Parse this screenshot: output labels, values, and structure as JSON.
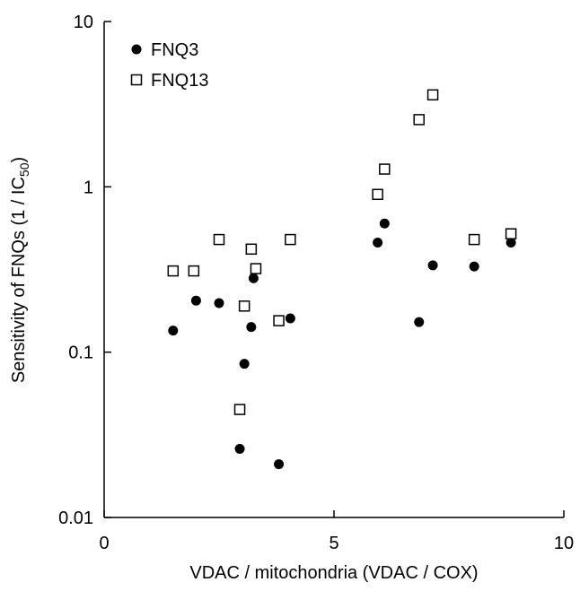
{
  "chart_data": {
    "type": "scatter",
    "xlabel": "VDAC / mitochondria (VDAC / COX)",
    "ylabel": "Sensitivity of FNQs (1 / IC",
    "ylabel_sub": "50",
    "ylabel_close": ")",
    "xlim": [
      0,
      10
    ],
    "ylim": [
      0.01,
      10
    ],
    "yscale": "log",
    "x_ticks": [
      0,
      5,
      10
    ],
    "x_tick_labels": [
      "0",
      "5",
      "10"
    ],
    "y_ticks": [
      0.01,
      0.1,
      1,
      10
    ],
    "y_tick_labels": [
      "0.01",
      "0.1",
      "1",
      "10"
    ],
    "grid": false,
    "legend_position": "top-left",
    "series": [
      {
        "name": "FNQ3",
        "marker": "filled-circle",
        "color": "#000000",
        "points": [
          {
            "x": 1.5,
            "y": 0.135
          },
          {
            "x": 2.0,
            "y": 0.205
          },
          {
            "x": 2.5,
            "y": 0.198
          },
          {
            "x": 2.95,
            "y": 0.026
          },
          {
            "x": 3.05,
            "y": 0.085
          },
          {
            "x": 3.2,
            "y": 0.142
          },
          {
            "x": 3.25,
            "y": 0.28
          },
          {
            "x": 3.8,
            "y": 0.021
          },
          {
            "x": 4.05,
            "y": 0.16
          },
          {
            "x": 5.95,
            "y": 0.46
          },
          {
            "x": 6.1,
            "y": 0.6
          },
          {
            "x": 6.85,
            "y": 0.152
          },
          {
            "x": 7.15,
            "y": 0.335
          },
          {
            "x": 8.05,
            "y": 0.33
          },
          {
            "x": 8.85,
            "y": 0.46
          }
        ]
      },
      {
        "name": "FNQ13",
        "marker": "open-square",
        "color": "#000000",
        "points": [
          {
            "x": 1.5,
            "y": 0.31
          },
          {
            "x": 1.95,
            "y": 0.31
          },
          {
            "x": 2.5,
            "y": 0.48
          },
          {
            "x": 2.95,
            "y": 0.045
          },
          {
            "x": 3.05,
            "y": 0.19
          },
          {
            "x": 3.2,
            "y": 0.42
          },
          {
            "x": 3.3,
            "y": 0.32
          },
          {
            "x": 3.8,
            "y": 0.155
          },
          {
            "x": 4.05,
            "y": 0.48
          },
          {
            "x": 5.95,
            "y": 0.9
          },
          {
            "x": 6.1,
            "y": 1.28
          },
          {
            "x": 6.85,
            "y": 2.55
          },
          {
            "x": 7.15,
            "y": 3.6
          },
          {
            "x": 8.05,
            "y": 0.48
          },
          {
            "x": 8.85,
            "y": 0.52
          }
        ]
      }
    ]
  }
}
